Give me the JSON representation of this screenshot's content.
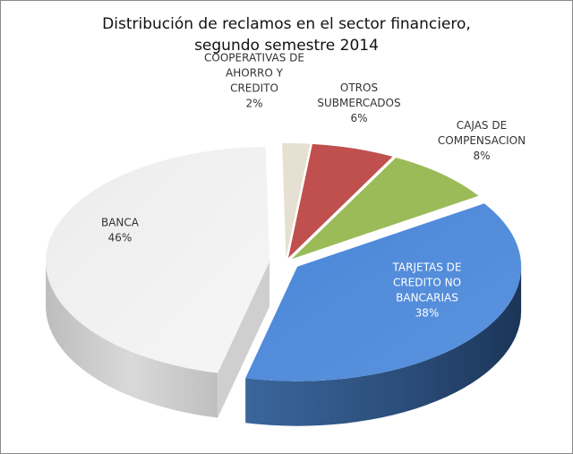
{
  "chart_data": {
    "type": "pie",
    "title": [
      "Distribución de reclamos en el sector financiero,",
      "segundo semestre 2014"
    ],
    "slices": [
      {
        "label": [
          "COOPERATIVAS DE",
          "AHORRO Y",
          "CREDITO"
        ],
        "value_label": "2%",
        "value": 2,
        "color": "#e6e0d2"
      },
      {
        "label": [
          "OTROS",
          "SUBMERCADOS"
        ],
        "value_label": "6%",
        "value": 6,
        "color": "#c0504d"
      },
      {
        "label": [
          "CAJAS DE",
          "COMPENSACION"
        ],
        "value_label": "8%",
        "value": 8,
        "color": "#9bbb59"
      },
      {
        "label": [
          "TARJETAS DE",
          "CREDITO NO",
          "BANCARIAS"
        ],
        "value_label": "38%",
        "value": 38,
        "color": "#4f81bd"
      },
      {
        "label": [
          "BANCA"
        ],
        "value_label": "46%",
        "value": 46,
        "color": "#f2f2f2"
      }
    ]
  }
}
